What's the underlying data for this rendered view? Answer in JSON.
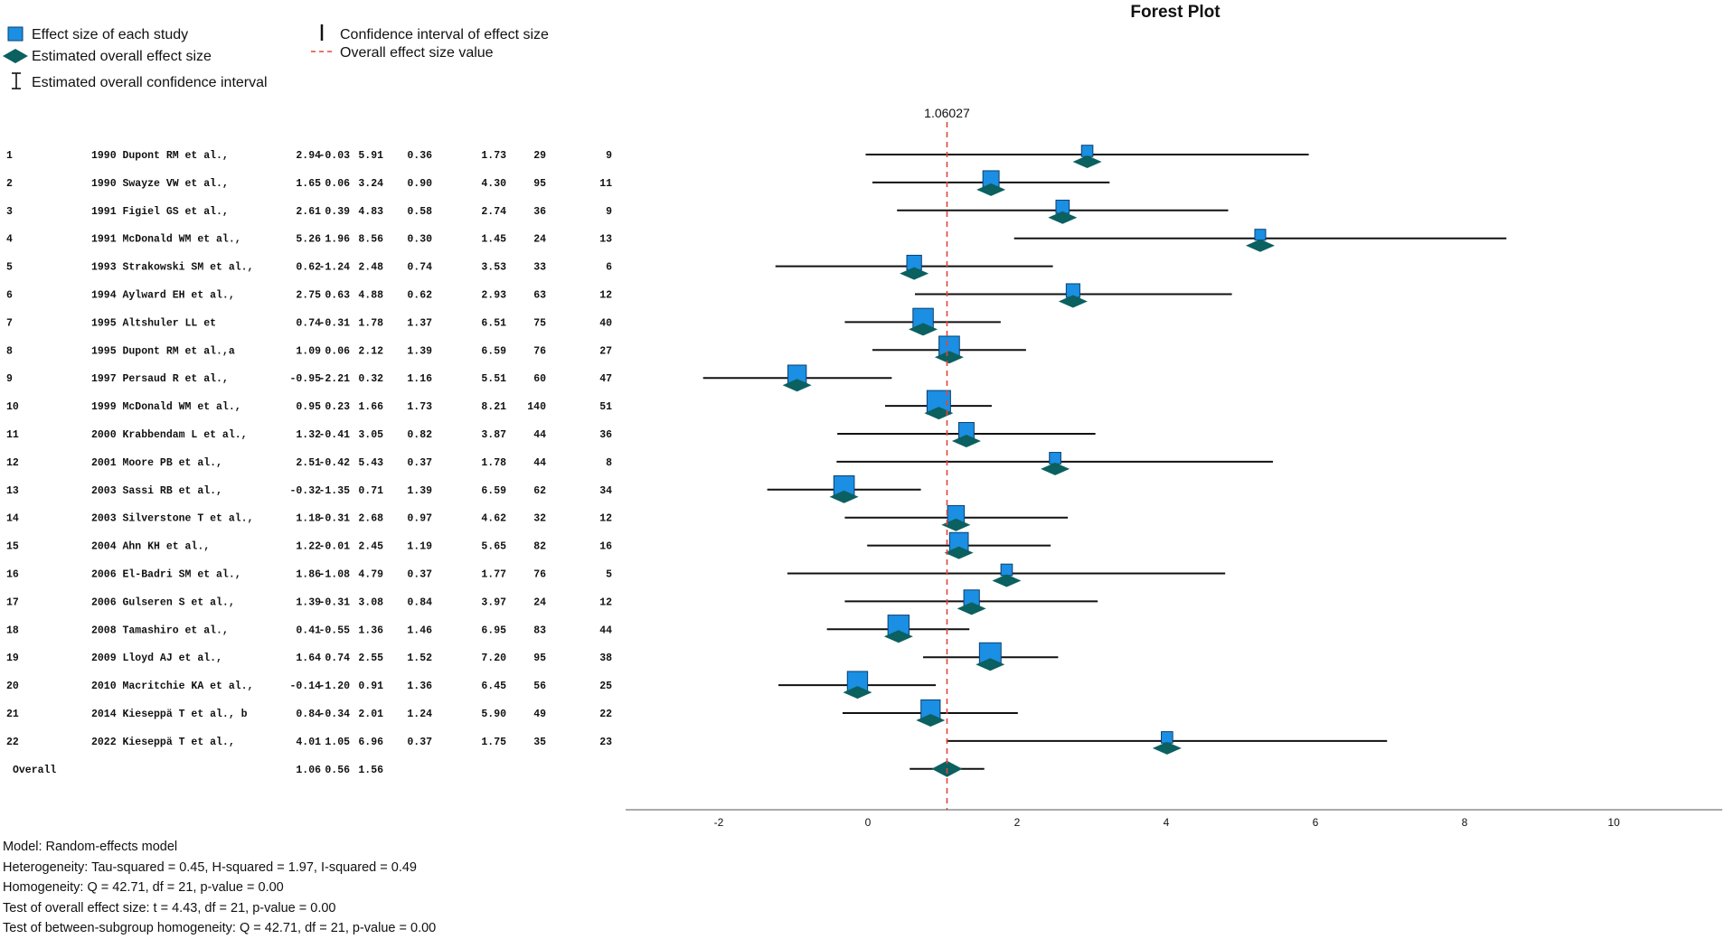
{
  "colors": {
    "square": "#1a8fe3",
    "square_border": "#0b3f6e",
    "diamond": "#0b6060",
    "refline": "#e0463c",
    "ci": "#111111"
  },
  "legend": {
    "study_effect": "Effect size of each study",
    "overall_effect": "Estimated overall effect size",
    "overall_ci": "Estimated overall confidence interval",
    "ci": "Confidence interval of effect size",
    "overall_value": "Overall effect size value"
  },
  "chart_data": {
    "type": "forest",
    "title": "Forest Plot",
    "reference_value": 1.06027,
    "reference_label": "1.06027",
    "xlim": [
      -3.2,
      11.5
    ],
    "xticks": [
      -2,
      0,
      2,
      4,
      6,
      8,
      10
    ],
    "xlabel": "",
    "studies": [
      {
        "id": "1",
        "study": "1990 Dupont RM et al.,",
        "es": "2.94",
        "lower": "-0.03",
        "upper": "5.91",
        "col4": "0.36",
        "col5": "1.73",
        "col6": "29",
        "col7": "9"
      },
      {
        "id": "2",
        "study": "1990 Swayze VW et al.,",
        "es": "1.65",
        "lower": "0.06",
        "upper": "3.24",
        "col4": "0.90",
        "col5": "4.30",
        "col6": "95",
        "col7": "11"
      },
      {
        "id": "3",
        "study": "1991 Figiel GS et al.,",
        "es": "2.61",
        "lower": "0.39",
        "upper": "4.83",
        "col4": "0.58",
        "col5": "2.74",
        "col6": "36",
        "col7": "9"
      },
      {
        "id": "4",
        "study": "1991 McDonald WM et al.,",
        "es": "5.26",
        "lower": "1.96",
        "upper": "8.56",
        "col4": "0.30",
        "col5": "1.45",
        "col6": "24",
        "col7": "13"
      },
      {
        "id": "5",
        "study": "1993 Strakowski SM et al.,",
        "es": "0.62",
        "lower": "-1.24",
        "upper": "2.48",
        "col4": "0.74",
        "col5": "3.53",
        "col6": "33",
        "col7": "6"
      },
      {
        "id": "6",
        "study": "1994 Aylward EH et al.,",
        "es": "2.75",
        "lower": "0.63",
        "upper": "4.88",
        "col4": "0.62",
        "col5": "2.93",
        "col6": "63",
        "col7": "12"
      },
      {
        "id": "7",
        "study": "1995 Altshuler LL et",
        "es": "0.74",
        "lower": "-0.31",
        "upper": "1.78",
        "col4": "1.37",
        "col5": "6.51",
        "col6": "75",
        "col7": "40"
      },
      {
        "id": "8",
        "study": "1995 Dupont RM et al.,a",
        "es": "1.09",
        "lower": "0.06",
        "upper": "2.12",
        "col4": "1.39",
        "col5": "6.59",
        "col6": "76",
        "col7": "27"
      },
      {
        "id": "9",
        "study": "1997 Persaud R et al.,",
        "es": "-0.95",
        "lower": "-2.21",
        "upper": "0.32",
        "col4": "1.16",
        "col5": "5.51",
        "col6": "60",
        "col7": "47"
      },
      {
        "id": "10",
        "study": "1999 McDonald WM et al.,",
        "es": "0.95",
        "lower": "0.23",
        "upper": "1.66",
        "col4": "1.73",
        "col5": "8.21",
        "col6": "140",
        "col7": "51"
      },
      {
        "id": "11",
        "study": "2000 Krabbendam L et al.,",
        "es": "1.32",
        "lower": "-0.41",
        "upper": "3.05",
        "col4": "0.82",
        "col5": "3.87",
        "col6": "44",
        "col7": "36"
      },
      {
        "id": "12",
        "study": "2001 Moore PB et al.,",
        "es": "2.51",
        "lower": "-0.42",
        "upper": "5.43",
        "col4": "0.37",
        "col5": "1.78",
        "col6": "44",
        "col7": "8"
      },
      {
        "id": "13",
        "study": "2003 Sassi RB et al.,",
        "es": "-0.32",
        "lower": "-1.35",
        "upper": "0.71",
        "col4": "1.39",
        "col5": "6.59",
        "col6": "62",
        "col7": "34"
      },
      {
        "id": "14",
        "study": "2003 Silverstone T et al.,",
        "es": "1.18",
        "lower": "-0.31",
        "upper": "2.68",
        "col4": "0.97",
        "col5": "4.62",
        "col6": "32",
        "col7": "12"
      },
      {
        "id": "15",
        "study": "2004 Ahn KH et al.,",
        "es": "1.22",
        "lower": "-0.01",
        "upper": "2.45",
        "col4": "1.19",
        "col5": "5.65",
        "col6": "82",
        "col7": "16"
      },
      {
        "id": "16",
        "study": "2006 El-Badri SM et al.,",
        "es": "1.86",
        "lower": "-1.08",
        "upper": "4.79",
        "col4": "0.37",
        "col5": "1.77",
        "col6": "76",
        "col7": "5"
      },
      {
        "id": "17",
        "study": "2006 Gulseren S et al.,",
        "es": "1.39",
        "lower": "-0.31",
        "upper": "3.08",
        "col4": "0.84",
        "col5": "3.97",
        "col6": "24",
        "col7": "12"
      },
      {
        "id": "18",
        "study": "2008 Tamashiro et al.,",
        "es": "0.41",
        "lower": "-0.55",
        "upper": "1.36",
        "col4": "1.46",
        "col5": "6.95",
        "col6": "83",
        "col7": "44"
      },
      {
        "id": "19",
        "study": "2009 Lloyd AJ et al.,",
        "es": "1.64",
        "lower": "0.74",
        "upper": "2.55",
        "col4": "1.52",
        "col5": "7.20",
        "col6": "95",
        "col7": "38"
      },
      {
        "id": "20",
        "study": "2010 Macritchie KA et al.,",
        "es": "-0.14",
        "lower": "-1.20",
        "upper": "0.91",
        "col4": "1.36",
        "col5": "6.45",
        "col6": "56",
        "col7": "25"
      },
      {
        "id": "21",
        "study": "2014 Kieseppä T et al., b",
        "es": "0.84",
        "lower": "-0.34",
        "upper": "2.01",
        "col4": "1.24",
        "col5": "5.90",
        "col6": "49",
        "col7": "22"
      },
      {
        "id": "22",
        "study": "2022 Kieseppä T et al.,",
        "es": "4.01",
        "lower": "1.05",
        "upper": "6.96",
        "col4": "0.37",
        "col5": "1.75",
        "col6": "35",
        "col7": "23"
      }
    ],
    "overall": {
      "label": "Overall",
      "es": "1.06",
      "lower": "0.56",
      "upper": "1.56"
    }
  },
  "stats": [
    "Model: Random-effects model",
    "Heterogeneity: Tau-squared = 0.45, H-squared = 1.97, I-squared = 0.49",
    "Homogeneity: Q = 42.71, df = 21, p-value = 0.00",
    "Test of overall effect size: t = 4.43, df = 21, p-value = 0.00",
    "Test of between-subgroup homogeneity: Q = 42.71, df = 21, p-value = 0.00"
  ]
}
